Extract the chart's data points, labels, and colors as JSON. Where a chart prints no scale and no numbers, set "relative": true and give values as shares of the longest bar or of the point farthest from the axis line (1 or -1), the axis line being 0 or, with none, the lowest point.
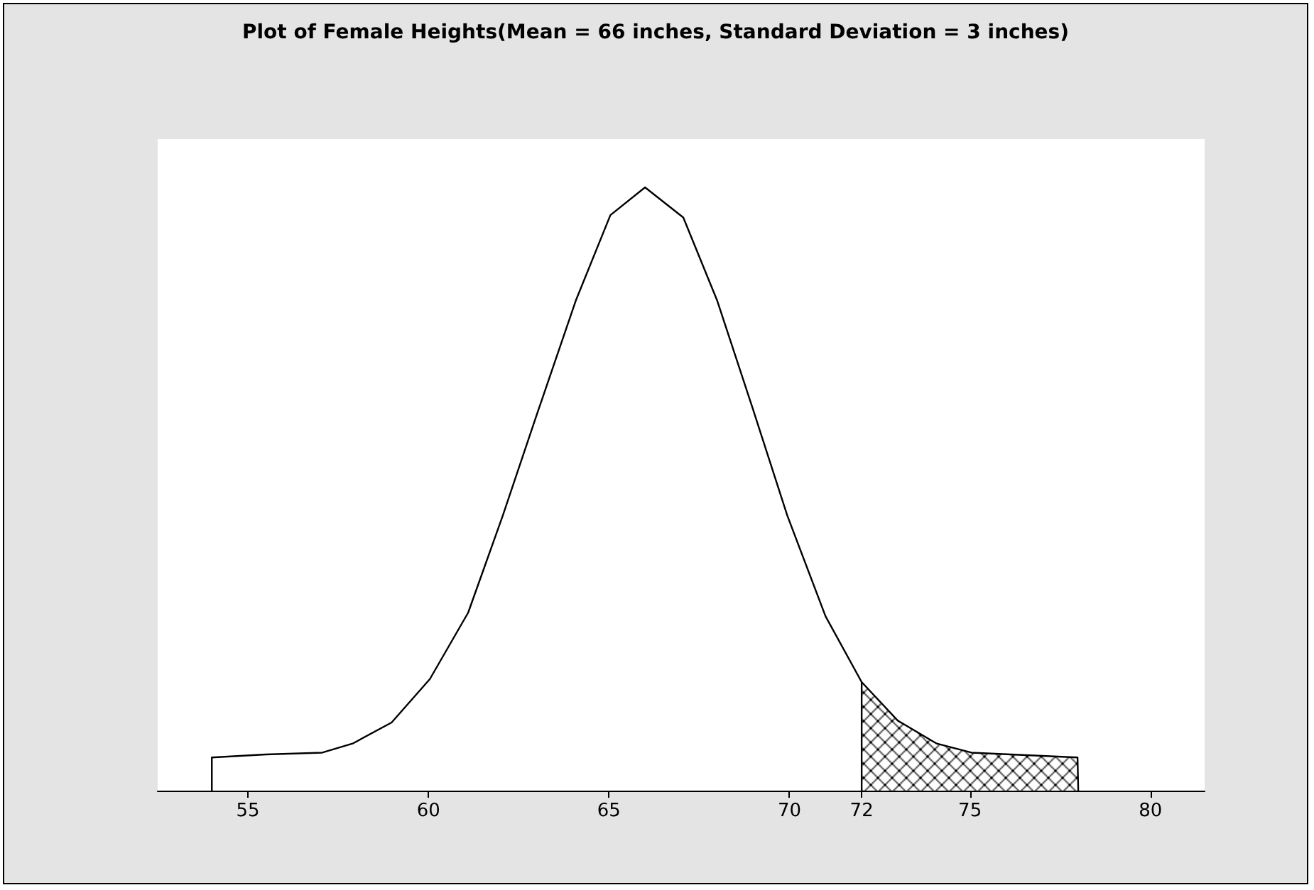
{
  "chart_data": {
    "type": "line",
    "title": "Plot of Female Heights(Mean = 66 inches, Standard Deviation = 3 inches)",
    "relative": true,
    "xlim": [
      52.5,
      81.5
    ],
    "xticks": [
      55,
      60,
      65,
      70,
      72,
      75,
      80
    ],
    "grid": false,
    "marker": "none",
    "line_style": "solid",
    "series": [
      {
        "color": "#000000",
        "x": [
          54,
          54,
          55.5,
          57.06,
          57.9,
          58.98,
          60.04,
          61.1,
          62.06,
          63.0,
          64.08,
          65.04,
          66,
          67.06,
          68.0,
          68.98,
          69.94,
          71.0,
          72
        ],
        "values": [
          0,
          0.055,
          0.06,
          0.063,
          0.078,
          0.113,
          0.185,
          0.295,
          0.456,
          0.623,
          0.812,
          0.954,
          1,
          0.95,
          0.812,
          0.634,
          0.456,
          0.289,
          0.18
        ]
      },
      {
        "type": "area",
        "color": "#000000",
        "x": [
          72,
          72,
          73.0,
          74.08,
          75.04,
          77.98,
          78
        ],
        "values": [
          0,
          0.18,
          0.116,
          0.078,
          0.063,
          0.055,
          0
        ]
      }
    ]
  }
}
